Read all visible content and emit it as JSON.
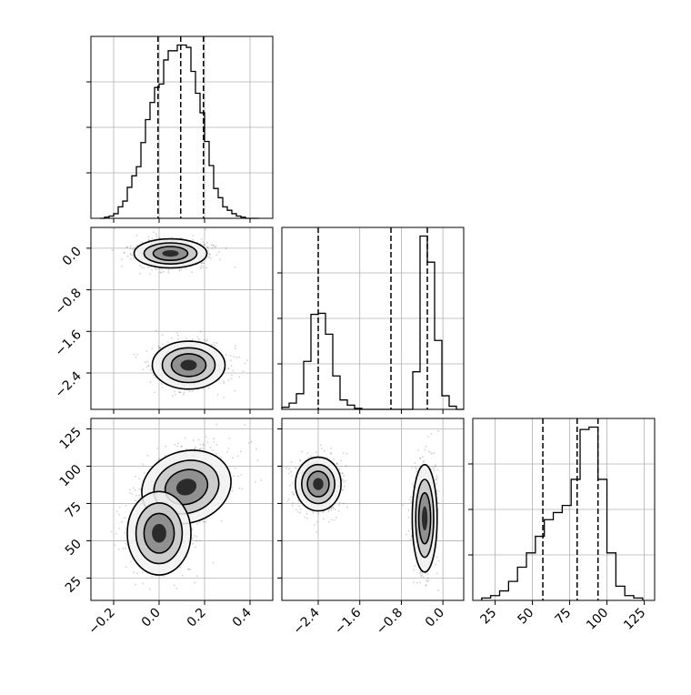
{
  "figure": {
    "type": "corner-plot",
    "background": "#ffffff",
    "grid": true
  },
  "colors": {
    "axis": "#000000",
    "grid": "#b0b0b0",
    "histogram": "#000000",
    "quantile_line": "#000000",
    "scatter": "#000000",
    "density": "#000000"
  },
  "chart_data": [
    {
      "type": "bar",
      "panel": "histogram-param-1",
      "xlim": [
        -0.3,
        0.5
      ],
      "bin_edges": [
        -0.26,
        -0.24,
        -0.22,
        -0.2,
        -0.18,
        -0.16,
        -0.14,
        -0.12,
        -0.1,
        -0.08,
        -0.06,
        -0.04,
        -0.02,
        0.0,
        0.02,
        0.04,
        0.06,
        0.08,
        0.1,
        0.12,
        0.14,
        0.16,
        0.18,
        0.2,
        0.22,
        0.24,
        0.26,
        0.28,
        0.3,
        0.32,
        0.34,
        0.36,
        0.38,
        0.4,
        0.42,
        0.44
      ],
      "values": [
        0,
        1,
        2,
        4,
        10,
        15,
        27,
        37,
        45,
        66,
        86,
        101,
        114,
        117,
        138,
        146,
        146,
        151,
        151,
        149,
        128,
        109,
        92,
        67,
        46,
        26,
        18,
        10,
        7,
        4,
        2,
        1,
        0,
        0,
        0
      ],
      "quantiles": [
        -0.005,
        0.095,
        0.195
      ]
    },
    {
      "type": "scatter",
      "panel": "density-param1-vs-param2",
      "xlim": [
        -0.3,
        0.5
      ],
      "ylim": [
        -3.1,
        0.4
      ],
      "clusters": [
        {
          "center": [
            0.05,
            -0.1
          ],
          "spread": [
            0.08,
            0.14
          ],
          "share": 0.56
        },
        {
          "center": [
            0.13,
            -2.25
          ],
          "spread": [
            0.08,
            0.23
          ],
          "share": 0.44
        }
      ]
    },
    {
      "type": "bar",
      "panel": "histogram-param-2",
      "xlim": [
        -3.1,
        0.4
      ],
      "bin_edges": [
        -3.1,
        -2.96,
        -2.82,
        -2.68,
        -2.54,
        -2.4,
        -2.26,
        -2.12,
        -1.98,
        -1.84,
        -1.7,
        -1.56,
        -1.42,
        -1.28,
        -1.14,
        -1.0,
        -0.86,
        -0.72,
        -0.58,
        -0.44,
        -0.3,
        -0.16,
        -0.02,
        0.12,
        0.26,
        0.4
      ],
      "values": [
        2,
        6,
        15,
        46,
        91,
        92,
        72,
        32,
        9,
        4,
        1,
        0,
        0,
        0,
        0,
        0,
        0,
        0,
        36,
        166,
        141,
        66,
        13,
        3,
        0
      ],
      "quantiles": [
        -2.4,
        -1.0,
        -0.3
      ]
    },
    {
      "type": "scatter",
      "panel": "density-param1-vs-param3",
      "xlim": [
        -0.3,
        0.5
      ],
      "ylim": [
        10,
        132
      ],
      "clusters": [
        {
          "center": [
            0.12,
            86
          ],
          "spread": [
            0.1,
            12
          ],
          "share": 0.56
        },
        {
          "center": [
            0.0,
            55
          ],
          "spread": [
            0.07,
            14
          ],
          "share": 0.44
        }
      ]
    },
    {
      "type": "scatter",
      "panel": "density-param2-vs-param3",
      "xlim": [
        -3.1,
        0.4
      ],
      "ylim": [
        10,
        132
      ],
      "clusters": [
        {
          "center": [
            -2.4,
            88
          ],
          "spread": [
            0.22,
            9
          ],
          "share": 0.48
        },
        {
          "center": [
            -0.35,
            65
          ],
          "spread": [
            0.12,
            18
          ],
          "share": 0.52
        }
      ]
    },
    {
      "type": "bar",
      "panel": "histogram-param-3",
      "xlim": [
        10,
        132
      ],
      "bin_edges": [
        16,
        22,
        28,
        34,
        40,
        46,
        52,
        58,
        64,
        70,
        76,
        82,
        88,
        94,
        100,
        106,
        112,
        118,
        124
      ],
      "values": [
        1,
        2,
        4,
        8,
        14,
        20,
        27,
        34,
        37,
        40,
        51,
        72,
        73,
        51,
        20,
        6,
        2,
        1
      ],
      "quantiles": [
        57,
        80,
        94
      ]
    }
  ],
  "axes": {
    "x_param1_ticks": [
      "−0.2",
      "0.0",
      "0.2",
      "0.4"
    ],
    "x_param2_ticks": [
      "−2.4",
      "−1.6",
      "−0.8",
      "0.0"
    ],
    "x_param3_ticks": [
      "25",
      "50",
      "75",
      "100",
      "125"
    ],
    "y_param2_ticks": [
      "0.0",
      "−0.8",
      "−1.6",
      "−2.4"
    ],
    "y_param3_ticks": [
      "125",
      "100",
      "75",
      "50",
      "25"
    ]
  }
}
